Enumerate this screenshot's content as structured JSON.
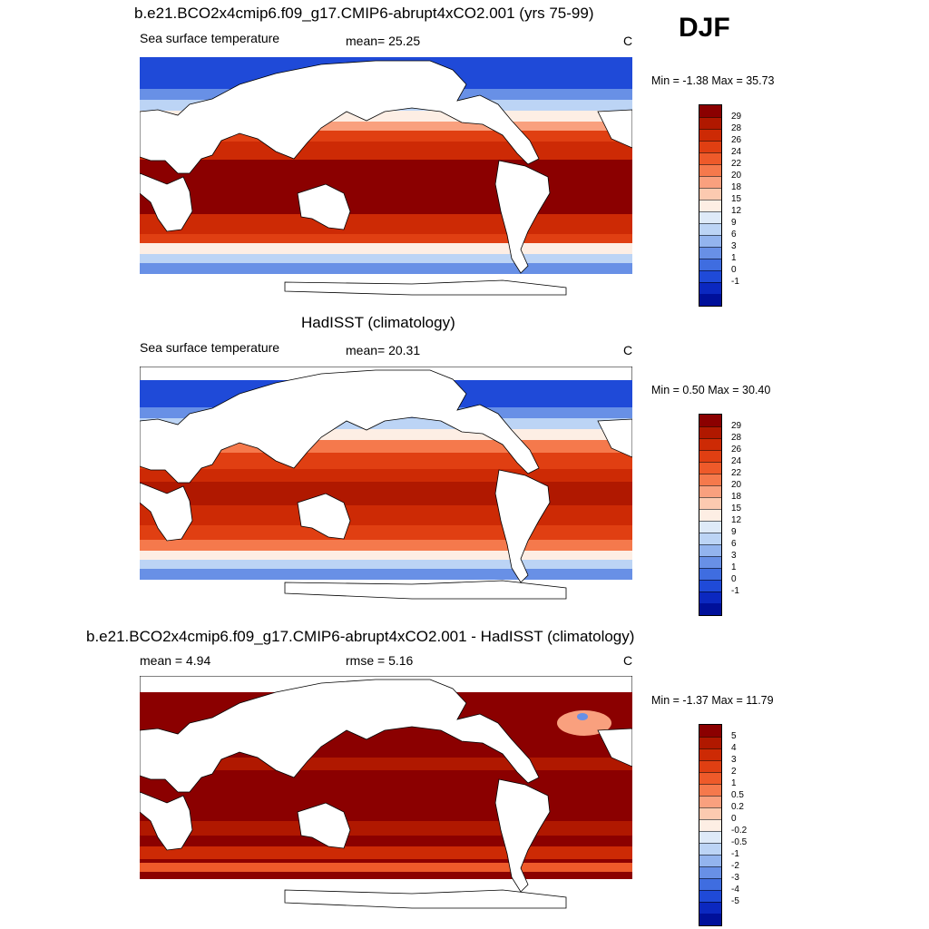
{
  "season": "DJF",
  "panels": [
    {
      "title": "b.e21.BCO2x4cmip6.f09_g17.CMIP6-abrupt4xCO2.001 (yrs 75-99)",
      "left_label": "Sea surface temperature",
      "center_label": "mean=  25.25",
      "units": "C",
      "minmax": "Min =  -1.38 Max =  35.73"
    },
    {
      "title": "HadISST (climatology)",
      "left_label": "Sea surface temperature",
      "center_label": "mean=  20.31",
      "units": "C",
      "minmax": "Min =   0.50 Max =  30.40"
    },
    {
      "title": "b.e21.BCO2x4cmip6.f09_g17.CMIP6-abrupt4xCO2.001 - HadISST (climatology)",
      "left_label": "mean =   4.94",
      "center_label": "rmse =   5.16",
      "units": "C",
      "minmax": "Min =  -1.37 Max =  11.79"
    }
  ],
  "colorbars": {
    "sst": {
      "labels": [
        "29",
        "28",
        "26",
        "24",
        "22",
        "20",
        "18",
        "15",
        "12",
        "9",
        "6",
        "3",
        "1",
        "0",
        "-1"
      ],
      "colors": [
        "#8b0000",
        "#b01800",
        "#cd2a05",
        "#e03f12",
        "#ee5a2a",
        "#f5794c",
        "#f9a07e",
        "#fccab0",
        "#fdeee4",
        "#deeaf8",
        "#bcd4f5",
        "#93b4ee",
        "#6890e6",
        "#3f6de0",
        "#1f4ad8",
        "#0b28c0",
        "#00109a"
      ]
    },
    "diff": {
      "labels": [
        "5",
        "4",
        "3",
        "2",
        "1",
        "0.5",
        "0.2",
        "0",
        "-0.2",
        "-0.5",
        "-1",
        "-2",
        "-3",
        "-4",
        "-5"
      ],
      "colors": [
        "#8b0000",
        "#b01800",
        "#cd2a05",
        "#e03f12",
        "#ee5a2a",
        "#f5794c",
        "#f9a07e",
        "#fccab0",
        "#fdeee4",
        "#deeaf8",
        "#bcd4f5",
        "#93b4ee",
        "#6890e6",
        "#3f6de0",
        "#1f4ad8",
        "#0b28c0",
        "#00109a"
      ]
    }
  },
  "map_colors": {
    "p1": [
      "#1f4ad8",
      "#6890e6",
      "#bcd4f5",
      "#fdeee4",
      "#f9a07e",
      "#e03f12",
      "#cd2a05",
      "#8b0000"
    ],
    "p2": [
      "#1f4ad8",
      "#6890e6",
      "#bcd4f5",
      "#fdeee4",
      "#f5794c",
      "#e03f12",
      "#cd2a05",
      "#b01800"
    ],
    "p3": [
      "#8b0000",
      "#b01800",
      "#cd2a05",
      "#ee5a2a"
    ]
  }
}
